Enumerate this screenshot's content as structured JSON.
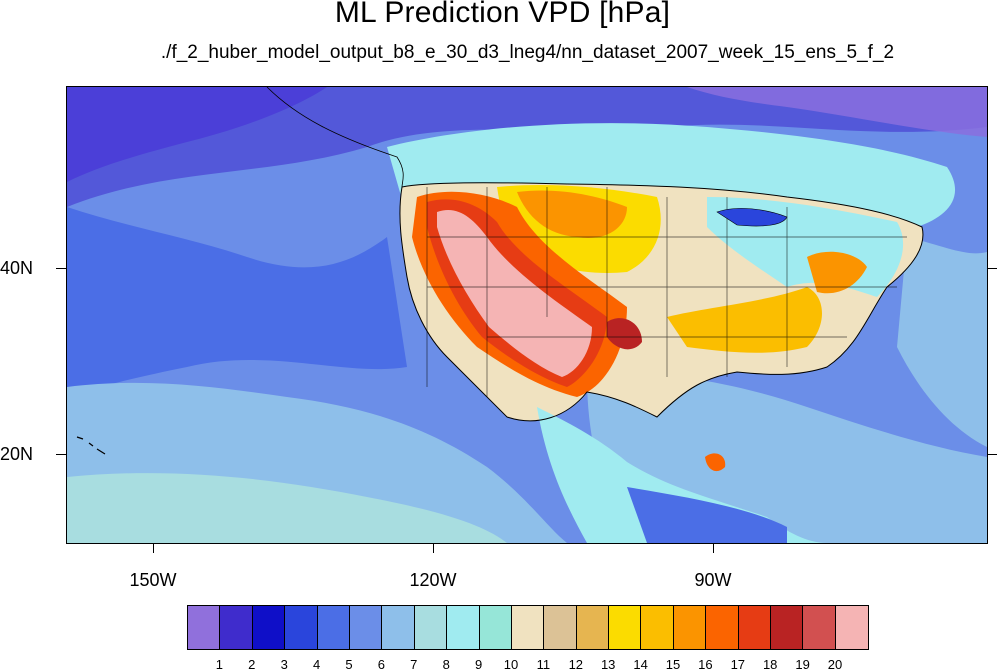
{
  "title": "ML Prediction VPD [hPa]",
  "subtitle": "./f_2_huber_model_output_b8_e_30_d3_lneg4/nn_dataset_2007_week_15_ens_5_f_2",
  "axes": {
    "lat_labels": [
      "40N",
      "20N"
    ],
    "lon_labels": [
      "150W",
      "120W",
      "90W"
    ]
  },
  "colorbar": {
    "labels": [
      "1",
      "2",
      "3",
      "4",
      "5",
      "6",
      "7",
      "8",
      "9",
      "10",
      "11",
      "12",
      "13",
      "14",
      "15",
      "16",
      "17",
      "18",
      "19",
      "20"
    ],
    "colors": [
      "#9070dc",
      "#3f2ccc",
      "#0f0fc8",
      "#2a45dc",
      "#4b6ee6",
      "#6b8ee8",
      "#8ebfea",
      "#a8dde0",
      "#a0ebf0",
      "#96e6d8",
      "#f0e2c0",
      "#dcc296",
      "#e6b550",
      "#fbdc00",
      "#fbbe00",
      "#fb9400",
      "#fb6400",
      "#e63c14",
      "#b92323",
      "#d25050",
      "#f5b4b4"
    ]
  },
  "chart_data": {
    "type": "heatmap",
    "title": "ML Prediction VPD [hPa]",
    "subtitle": "./f_2_huber_model_output_b8_e_30_d3_lneg4/nn_dataset_2007_week_15_ens_5_f_2",
    "variable": "VPD",
    "units": "hPa",
    "lon_ticks": [
      "150W",
      "120W",
      "90W"
    ],
    "lat_ticks": [
      "40N",
      "20N"
    ],
    "colorbar_levels": [
      1,
      2,
      3,
      4,
      5,
      6,
      7,
      8,
      9,
      10,
      11,
      12,
      13,
      14,
      15,
      16,
      17,
      18,
      19,
      20
    ]
  }
}
